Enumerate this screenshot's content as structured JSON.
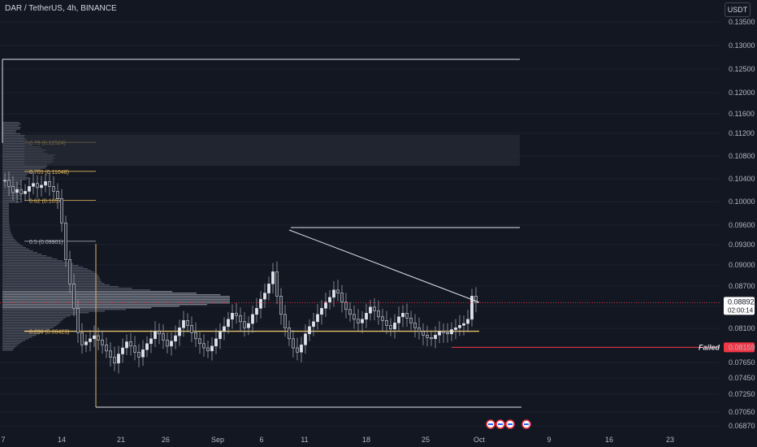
{
  "header": {
    "symbol": "DAR / TetherUS, 4h, BINANCE",
    "currency": "USDT"
  },
  "colors": {
    "background": "#131722",
    "up": "#e0e3eb",
    "down": "#e0e3eb",
    "fib": "#e0b55a",
    "yellow": "#e8c46a",
    "failed": "#f23645",
    "current": "#e0e3eb"
  },
  "chart_data": {
    "type": "candlestick",
    "yaxis": {
      "min": 0.0679,
      "max": 0.1365,
      "ticks": [
        "0.13500",
        "0.13000",
        "0.12500",
        "0.12000",
        "0.11600",
        "0.11200",
        "0.10800",
        "0.10400",
        "0.10000",
        "0.09600",
        "0.09300",
        "0.09000",
        "0.08700",
        "0.08400",
        "0.08100",
        "0.07850",
        "0.07650",
        "0.07450",
        "0.07250",
        "0.07050",
        "0.06870"
      ]
    },
    "xaxis": {
      "labels": [
        "7",
        "14",
        "21",
        "26",
        "Sep",
        "6",
        "11",
        "18",
        "25",
        "Oct",
        "9",
        "16",
        "23"
      ]
    },
    "fib_levels": [
      {
        "label": "0.79 (0.11524)",
        "price": 0.11524
      },
      {
        "label": "0.705 (0.11048)",
        "price": 0.11048
      },
      {
        "label": "0.62 (0.1057)",
        "price": 0.1057
      },
      {
        "label": "0.5 (0.09901)",
        "price": 0.09901
      },
      {
        "label": "0.236 (0.08423)",
        "price": 0.08423
      }
    ],
    "last_price": {
      "value": "0.08892",
      "countdown": "02:00:14",
      "price": 0.08892
    },
    "failed_level": {
      "label": "Failed",
      "value": "0.08159",
      "price": 0.08159
    },
    "lower_tag": {
      "value": "0.08700"
    },
    "candles_close": [
      0.109,
      0.108,
      0.107,
      0.1075,
      0.1068,
      0.1072,
      0.108,
      0.1085,
      0.1078,
      0.1082,
      0.1088,
      0.108,
      0.1072,
      0.106,
      0.102,
      0.096,
      0.092,
      0.088,
      0.084,
      0.082,
      0.0825,
      0.083,
      0.0835,
      0.0828,
      0.082,
      0.081,
      0.08,
      0.079,
      0.0805,
      0.0815,
      0.0825,
      0.0818,
      0.0808,
      0.08,
      0.0812,
      0.0822,
      0.083,
      0.0842,
      0.0838,
      0.0828,
      0.0818,
      0.0826,
      0.0835,
      0.0848,
      0.086,
      0.0852,
      0.084,
      0.083,
      0.0822,
      0.0815,
      0.081,
      0.0818,
      0.083,
      0.0842,
      0.085,
      0.0862,
      0.0872,
      0.0868,
      0.0858,
      0.0848,
      0.0855,
      0.087,
      0.088,
      0.0895,
      0.0905,
      0.092,
      0.094,
      0.09,
      0.087,
      0.0848,
      0.083,
      0.0815,
      0.0808,
      0.082,
      0.0838,
      0.085,
      0.0858,
      0.087,
      0.088,
      0.089,
      0.0898,
      0.091,
      0.0905,
      0.089,
      0.0878,
      0.087,
      0.0862,
      0.0856,
      0.0862,
      0.0872,
      0.0882,
      0.0876,
      0.0866,
      0.086,
      0.0852,
      0.0846,
      0.0856,
      0.0866,
      0.0872,
      0.0864,
      0.0856,
      0.0848,
      0.0842,
      0.0836,
      0.0832,
      0.083,
      0.0836,
      0.0842,
      0.084,
      0.0838,
      0.0845,
      0.0848,
      0.0852,
      0.0855,
      0.0862,
      0.09,
      0.0889
    ]
  }
}
